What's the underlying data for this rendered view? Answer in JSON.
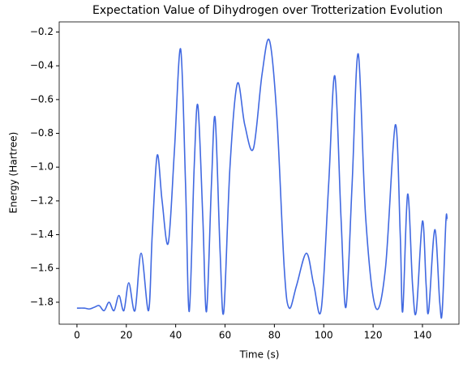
{
  "chart_data": {
    "type": "line",
    "title": "Expectation Value of Dihydrogen over Trotterization Evolution",
    "x_label": "Time (s)",
    "y_label": "Energy (Hartree)",
    "x": [
      0,
      3,
      5,
      7,
      9,
      11,
      13,
      15,
      17,
      19,
      21,
      23.5,
      26,
      29,
      30.5,
      32.5,
      34.5,
      37,
      39.5,
      42,
      44,
      45.5,
      47.5,
      49,
      51,
      52.5,
      54.5,
      56,
      58,
      59.5,
      62,
      65,
      68,
      71.5,
      75,
      78,
      81,
      84,
      86,
      89,
      93,
      96,
      99,
      102,
      104.5,
      107,
      109,
      111.5,
      114,
      117,
      121,
      125,
      129,
      131,
      132,
      134,
      136,
      137.5,
      140,
      141.5,
      142.5,
      145,
      147,
      148,
      149.5,
      150
    ],
    "series": [
      {
        "name": "Energy",
        "color": "#4169e1",
        "values": [
          -1.835,
          -1.835,
          -1.84,
          -1.83,
          -1.82,
          -1.85,
          -1.8,
          -1.85,
          -1.76,
          -1.85,
          -1.685,
          -1.85,
          -1.51,
          -1.85,
          -1.4,
          -0.93,
          -1.2,
          -1.45,
          -0.9,
          -0.3,
          -1.1,
          -1.855,
          -1.0,
          -0.635,
          -1.3,
          -1.855,
          -1.1,
          -0.71,
          -1.5,
          -1.855,
          -1.0,
          -0.505,
          -0.75,
          -0.89,
          -0.45,
          -0.25,
          -0.7,
          -1.6,
          -1.835,
          -1.7,
          -1.51,
          -1.7,
          -1.84,
          -1.1,
          -0.46,
          -1.3,
          -1.83,
          -1.1,
          -0.33,
          -1.3,
          -1.83,
          -1.6,
          -0.75,
          -1.4,
          -1.855,
          -1.16,
          -1.7,
          -1.855,
          -1.32,
          -1.7,
          -1.855,
          -1.37,
          -1.8,
          -1.855,
          -1.32,
          -1.31
        ]
      }
    ],
    "xlim": [
      -7.2,
      154.8
    ],
    "xticks": [
      0,
      20,
      40,
      60,
      80,
      100,
      120,
      140
    ],
    "ylim": [
      -1.93,
      -0.14
    ],
    "yticks": [
      {
        "value": -1.8,
        "label": "−1.8"
      },
      {
        "value": -1.6,
        "label": "−1.6"
      },
      {
        "value": -1.4,
        "label": "−1.4"
      },
      {
        "value": -1.2,
        "label": "−1.2"
      },
      {
        "value": -1.0,
        "label": "−1.0"
      },
      {
        "value": -0.8,
        "label": "−0.8"
      },
      {
        "value": -0.6,
        "label": "−0.6"
      },
      {
        "value": -0.4,
        "label": "−0.4"
      },
      {
        "value": -0.2,
        "label": "−0.2"
      }
    ],
    "grid": false
  }
}
